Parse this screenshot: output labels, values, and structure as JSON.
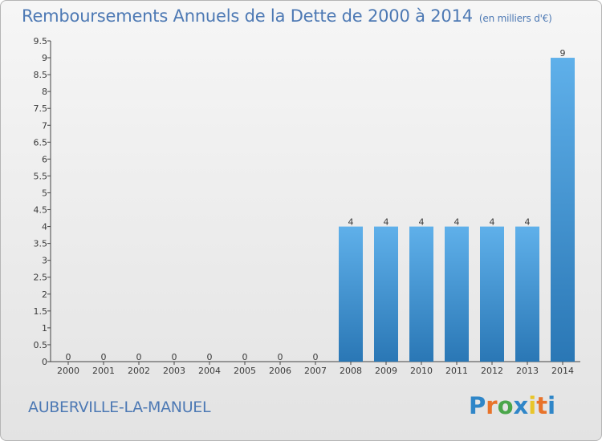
{
  "header": {
    "title": "Remboursements Annuels de la Dette de 2000 à 2014",
    "unit": "(en milliers d'€)"
  },
  "footer": {
    "commune": "AUBERVILLE-LA-MANUEL"
  },
  "logo": {
    "letters": [
      "P",
      "r",
      "o",
      "x",
      "i",
      "t",
      "i"
    ],
    "colors": [
      "#2f86c8",
      "#e8732a",
      "#4aa64a",
      "#2f86c8",
      "#e8c52a",
      "#e8732a",
      "#2f86c8"
    ]
  },
  "colors": {
    "bar_top": "#5fb0ea",
    "bar_bottom": "#2a77b5",
    "axis": "#444444"
  },
  "chart_data": {
    "type": "bar",
    "title": "Remboursements Annuels de la Dette de 2000 à 2014",
    "categories": [
      "2000",
      "2001",
      "2002",
      "2003",
      "2004",
      "2005",
      "2006",
      "2007",
      "2008",
      "2009",
      "2010",
      "2011",
      "2012",
      "2013",
      "2014"
    ],
    "values": [
      0,
      0,
      0,
      0,
      0,
      0,
      0,
      0,
      4,
      4,
      4,
      4,
      4,
      4,
      9
    ],
    "value_labels": [
      "0",
      "0",
      "0",
      "0",
      "0",
      "0",
      "0",
      "0",
      "4",
      "4",
      "4",
      "4",
      "4",
      "4",
      "9"
    ],
    "ylim": [
      0,
      9.5
    ],
    "yticks": [
      "0",
      "0.5",
      "1",
      "1.5",
      "2",
      "2.5",
      "3",
      "3.5",
      "4",
      "4.5",
      "5",
      "5.5",
      "6",
      "6.5",
      "7",
      "7.5",
      "8",
      "8.5",
      "9",
      "9.5"
    ],
    "grid": false
  }
}
